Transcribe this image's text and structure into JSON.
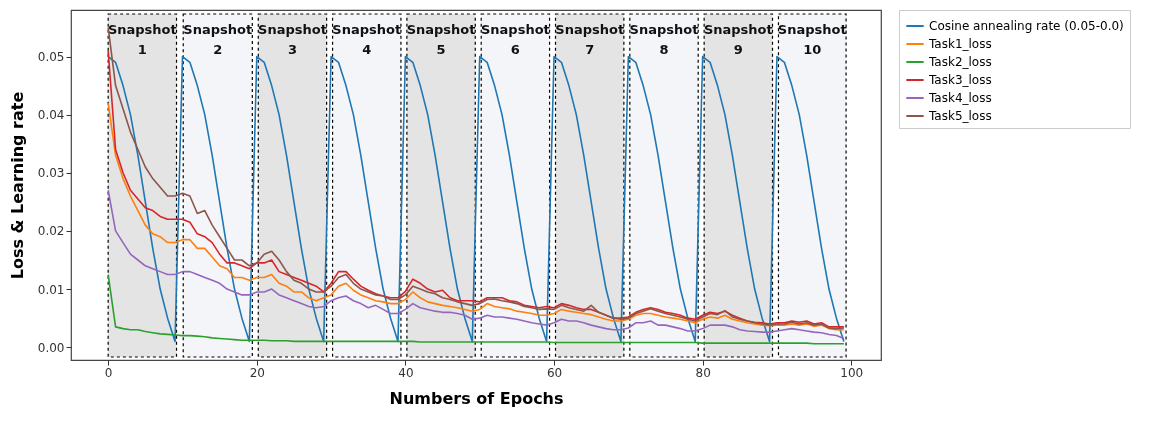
{
  "chart_data": {
    "type": "line",
    "xlabel": "Numbers of Epochs",
    "ylabel": "Loss & Learning rate",
    "x": [
      0,
      1,
      2,
      3,
      4,
      5,
      6,
      7,
      8,
      9,
      10,
      11,
      12,
      13,
      14,
      15,
      16,
      17,
      18,
      19,
      20,
      21,
      22,
      23,
      24,
      25,
      26,
      27,
      28,
      29,
      30,
      31,
      32,
      33,
      34,
      35,
      36,
      37,
      38,
      39,
      40,
      41,
      42,
      43,
      44,
      45,
      46,
      47,
      48,
      49,
      50,
      51,
      52,
      53,
      54,
      55,
      56,
      57,
      58,
      59,
      60,
      61,
      62,
      63,
      64,
      65,
      66,
      67,
      68,
      69,
      70,
      71,
      72,
      73,
      74,
      75,
      76,
      77,
      78,
      79,
      80,
      81,
      82,
      83,
      84,
      85,
      86,
      87,
      88,
      89,
      90,
      91,
      92,
      93,
      94,
      95,
      96,
      97,
      98,
      99
    ],
    "xlim": [
      -5,
      104
    ],
    "xticks": [
      0,
      20,
      40,
      60,
      80,
      100
    ],
    "ylim": [
      -0.0022,
      0.058
    ],
    "yticks": [
      {
        "value": 0,
        "label": "0.00"
      },
      {
        "value": 0.01,
        "label": "0.01"
      },
      {
        "value": 0.02,
        "label": "0.02"
      },
      {
        "value": 0.03,
        "label": "0.03"
      },
      {
        "value": 0.04,
        "label": "0.04"
      },
      {
        "value": 0.05,
        "label": "0.05"
      }
    ],
    "legend": "top right",
    "line_style": "solid",
    "series": [
      {
        "name": "Cosine annealing rate (0.05-0.0)",
        "color": "#1f77b4",
        "values": [
          0.05,
          0.049,
          0.045,
          0.04,
          0.033,
          0.025,
          0.017,
          0.01,
          0.005,
          0.001,
          0.05,
          0.049,
          0.045,
          0.04,
          0.033,
          0.025,
          0.017,
          0.01,
          0.005,
          0.001,
          0.05,
          0.049,
          0.045,
          0.04,
          0.033,
          0.025,
          0.017,
          0.01,
          0.005,
          0.001,
          0.05,
          0.049,
          0.045,
          0.04,
          0.033,
          0.025,
          0.017,
          0.01,
          0.005,
          0.001,
          0.05,
          0.049,
          0.045,
          0.04,
          0.033,
          0.025,
          0.017,
          0.01,
          0.005,
          0.001,
          0.05,
          0.049,
          0.045,
          0.04,
          0.033,
          0.025,
          0.017,
          0.01,
          0.005,
          0.001,
          0.05,
          0.049,
          0.045,
          0.04,
          0.033,
          0.025,
          0.017,
          0.01,
          0.005,
          0.001,
          0.05,
          0.049,
          0.045,
          0.04,
          0.033,
          0.025,
          0.017,
          0.01,
          0.005,
          0.001,
          0.05,
          0.049,
          0.045,
          0.04,
          0.033,
          0.025,
          0.017,
          0.01,
          0.005,
          0.001,
          0.05,
          0.049,
          0.045,
          0.04,
          0.033,
          0.025,
          0.017,
          0.01,
          0.005,
          0.001
        ]
      },
      {
        "name": "Task1_loss",
        "color": "#ff7f0e",
        "values": [
          0.042,
          0.033,
          0.029,
          0.026,
          0.0235,
          0.021,
          0.0195,
          0.019,
          0.018,
          0.018,
          0.0185,
          0.0185,
          0.017,
          0.017,
          0.0155,
          0.014,
          0.0135,
          0.012,
          0.012,
          0.0115,
          0.012,
          0.012,
          0.0125,
          0.011,
          0.0105,
          0.0095,
          0.0095,
          0.0085,
          0.008,
          0.0085,
          0.009,
          0.0105,
          0.011,
          0.0098,
          0.009,
          0.0085,
          0.008,
          0.0078,
          0.0075,
          0.0075,
          0.0082,
          0.0095,
          0.0085,
          0.0078,
          0.0075,
          0.0072,
          0.007,
          0.0068,
          0.0065,
          0.0062,
          0.0065,
          0.0075,
          0.007,
          0.0068,
          0.0066,
          0.0062,
          0.006,
          0.0058,
          0.0055,
          0.0055,
          0.0058,
          0.0065,
          0.0062,
          0.006,
          0.0058,
          0.0056,
          0.0052,
          0.0048,
          0.0045,
          0.0045,
          0.0048,
          0.0055,
          0.0058,
          0.0058,
          0.0055,
          0.0052,
          0.005,
          0.0048,
          0.0045,
          0.0042,
          0.0048,
          0.0052,
          0.005,
          0.0055,
          0.0048,
          0.0045,
          0.0042,
          0.004,
          0.0038,
          0.0037,
          0.0038,
          0.0038,
          0.004,
          0.0038,
          0.004,
          0.0036,
          0.0038,
          0.0032,
          0.003,
          0.003
        ]
      },
      {
        "name": "Task2_loss",
        "color": "#2ca02c",
        "values": [
          0.0125,
          0.0035,
          0.0032,
          0.003,
          0.003,
          0.0027,
          0.0025,
          0.0023,
          0.0022,
          0.0021,
          0.002,
          0.002,
          0.0019,
          0.0018,
          0.0016,
          0.0015,
          0.0014,
          0.0013,
          0.0012,
          0.0012,
          0.0012,
          0.0012,
          0.0011,
          0.0011,
          0.0011,
          0.001,
          0.001,
          0.001,
          0.001,
          0.001,
          0.001,
          0.001,
          0.001,
          0.001,
          0.001,
          0.001,
          0.001,
          0.001,
          0.001,
          0.001,
          0.001,
          0.001,
          0.0009,
          0.0009,
          0.0009,
          0.0009,
          0.0009,
          0.0009,
          0.0009,
          0.0009,
          0.0009,
          0.0009,
          0.0009,
          0.0009,
          0.0009,
          0.0009,
          0.0009,
          0.0009,
          0.0009,
          0.0009,
          0.0008,
          0.0008,
          0.0008,
          0.0008,
          0.0008,
          0.0008,
          0.0008,
          0.0008,
          0.0008,
          0.0008,
          0.0008,
          0.0008,
          0.0008,
          0.0008,
          0.0008,
          0.0008,
          0.0008,
          0.0008,
          0.0008,
          0.0008,
          0.0007,
          0.0007,
          0.0007,
          0.0007,
          0.0007,
          0.0007,
          0.0007,
          0.0007,
          0.0007,
          0.0007,
          0.0007,
          0.0007,
          0.0007,
          0.0007,
          0.0007,
          0.0006,
          0.0006,
          0.0006,
          0.0006,
          0.0006
        ]
      },
      {
        "name": "Task3_loss",
        "color": "#d62728",
        "values": [
          0.051,
          0.034,
          0.03,
          0.027,
          0.0255,
          0.024,
          0.0235,
          0.0225,
          0.022,
          0.022,
          0.022,
          0.0215,
          0.0195,
          0.019,
          0.018,
          0.016,
          0.0145,
          0.0145,
          0.014,
          0.0135,
          0.0145,
          0.0145,
          0.015,
          0.013,
          0.0125,
          0.012,
          0.0115,
          0.011,
          0.0105,
          0.0095,
          0.011,
          0.013,
          0.013,
          0.0117,
          0.0105,
          0.0098,
          0.0092,
          0.0088,
          0.0085,
          0.0085,
          0.0096,
          0.0117,
          0.011,
          0.01,
          0.0095,
          0.0098,
          0.0085,
          0.008,
          0.008,
          0.008,
          0.0078,
          0.0085,
          0.0085,
          0.0085,
          0.008,
          0.0078,
          0.0072,
          0.007,
          0.0068,
          0.007,
          0.0068,
          0.0075,
          0.0072,
          0.0068,
          0.0065,
          0.0065,
          0.006,
          0.0055,
          0.005,
          0.005,
          0.0052,
          0.006,
          0.0065,
          0.0068,
          0.0065,
          0.006,
          0.0058,
          0.0055,
          0.005,
          0.0048,
          0.0055,
          0.006,
          0.0058,
          0.0062,
          0.0055,
          0.005,
          0.0045,
          0.0043,
          0.0042,
          0.004,
          0.0042,
          0.0042,
          0.0045,
          0.0043,
          0.0045,
          0.004,
          0.0042,
          0.0035,
          0.0035,
          0.0035
        ]
      },
      {
        "name": "Task4_loss",
        "color": "#9467bd",
        "values": [
          0.027,
          0.02,
          0.018,
          0.016,
          0.015,
          0.014,
          0.0135,
          0.013,
          0.0125,
          0.0125,
          0.013,
          0.013,
          0.0125,
          0.012,
          0.0115,
          0.011,
          0.01,
          0.0095,
          0.009,
          0.009,
          0.0095,
          0.0095,
          0.01,
          0.009,
          0.0085,
          0.008,
          0.0075,
          0.007,
          0.0068,
          0.007,
          0.008,
          0.0085,
          0.0088,
          0.008,
          0.0075,
          0.0068,
          0.0072,
          0.0065,
          0.0058,
          0.0058,
          0.0065,
          0.0075,
          0.0068,
          0.0065,
          0.0062,
          0.006,
          0.006,
          0.0058,
          0.0055,
          0.0048,
          0.005,
          0.0055,
          0.0052,
          0.0052,
          0.005,
          0.0048,
          0.0045,
          0.0042,
          0.004,
          0.0038,
          0.0042,
          0.0048,
          0.0045,
          0.0045,
          0.0042,
          0.0038,
          0.0035,
          0.0032,
          0.003,
          0.003,
          0.0033,
          0.0042,
          0.0042,
          0.0045,
          0.0038,
          0.0038,
          0.0035,
          0.0032,
          0.0028,
          0.0028,
          0.0032,
          0.0038,
          0.0038,
          0.0038,
          0.0035,
          0.003,
          0.0028,
          0.0027,
          0.0026,
          0.0026,
          0.0028,
          0.003,
          0.0032,
          0.003,
          0.0028,
          0.0026,
          0.0025,
          0.0022,
          0.002,
          0.0015
        ]
      },
      {
        "name": "Task5_loss",
        "color": "#8c564b",
        "values": [
          0.055,
          0.045,
          0.041,
          0.037,
          0.034,
          0.031,
          0.029,
          0.0275,
          0.026,
          0.026,
          0.0265,
          0.026,
          0.023,
          0.0235,
          0.021,
          0.019,
          0.017,
          0.015,
          0.015,
          0.014,
          0.0145,
          0.016,
          0.0165,
          0.015,
          0.013,
          0.0115,
          0.011,
          0.01,
          0.0095,
          0.0095,
          0.0105,
          0.012,
          0.0125,
          0.011,
          0.01,
          0.0095,
          0.009,
          0.0088,
          0.0082,
          0.0082,
          0.009,
          0.0105,
          0.01,
          0.0095,
          0.0092,
          0.0085,
          0.0082,
          0.0078,
          0.0075,
          0.0072,
          0.0075,
          0.0082,
          0.0083,
          0.008,
          0.0078,
          0.0075,
          0.007,
          0.0068,
          0.0065,
          0.0066,
          0.0065,
          0.0072,
          0.0068,
          0.0065,
          0.0062,
          0.0072,
          0.006,
          0.0055,
          0.005,
          0.0048,
          0.005,
          0.0058,
          0.0062,
          0.0066,
          0.0062,
          0.0058,
          0.0055,
          0.0052,
          0.0048,
          0.0045,
          0.0052,
          0.0058,
          0.0056,
          0.0063,
          0.0052,
          0.0048,
          0.0045,
          0.0042,
          0.004,
          0.0038,
          0.004,
          0.004,
          0.0043,
          0.004,
          0.0042,
          0.0038,
          0.004,
          0.0033,
          0.0032,
          0.0033
        ]
      }
    ],
    "bands": [
      {
        "axis": "x",
        "from": 0,
        "to": 9.2,
        "label": "Snapshot 1",
        "color": "#e4e4e4"
      },
      {
        "axis": "x",
        "from": 10.1,
        "to": 19.4,
        "label": "Snapshot 2",
        "color": "#f4f5f8"
      },
      {
        "axis": "x",
        "from": 20.2,
        "to": 29.4,
        "label": "Snapshot 3",
        "color": "#e4e4e4"
      },
      {
        "axis": "x",
        "from": 30.2,
        "to": 39.4,
        "label": "Snapshot 4",
        "color": "#f4f5f8"
      },
      {
        "axis": "x",
        "from": 40.2,
        "to": 49.4,
        "label": "Snapshot 5",
        "color": "#e4e4e4"
      },
      {
        "axis": "x",
        "from": 50.2,
        "to": 59.4,
        "label": "Snapshot 6",
        "color": "#f4f5f8"
      },
      {
        "axis": "x",
        "from": 60.2,
        "to": 69.4,
        "label": "Snapshot 7",
        "color": "#e4e4e4"
      },
      {
        "axis": "x",
        "from": 70.2,
        "to": 79.4,
        "label": "Snapshot 8",
        "color": "#f4f5f8"
      },
      {
        "axis": "x",
        "from": 80.2,
        "to": 89.4,
        "label": "Snapshot 9",
        "color": "#e4e4e4"
      },
      {
        "axis": "x",
        "from": 90.2,
        "to": 99.3,
        "label": "Snapshot 10",
        "color": "#f4f5f8"
      }
    ]
  }
}
